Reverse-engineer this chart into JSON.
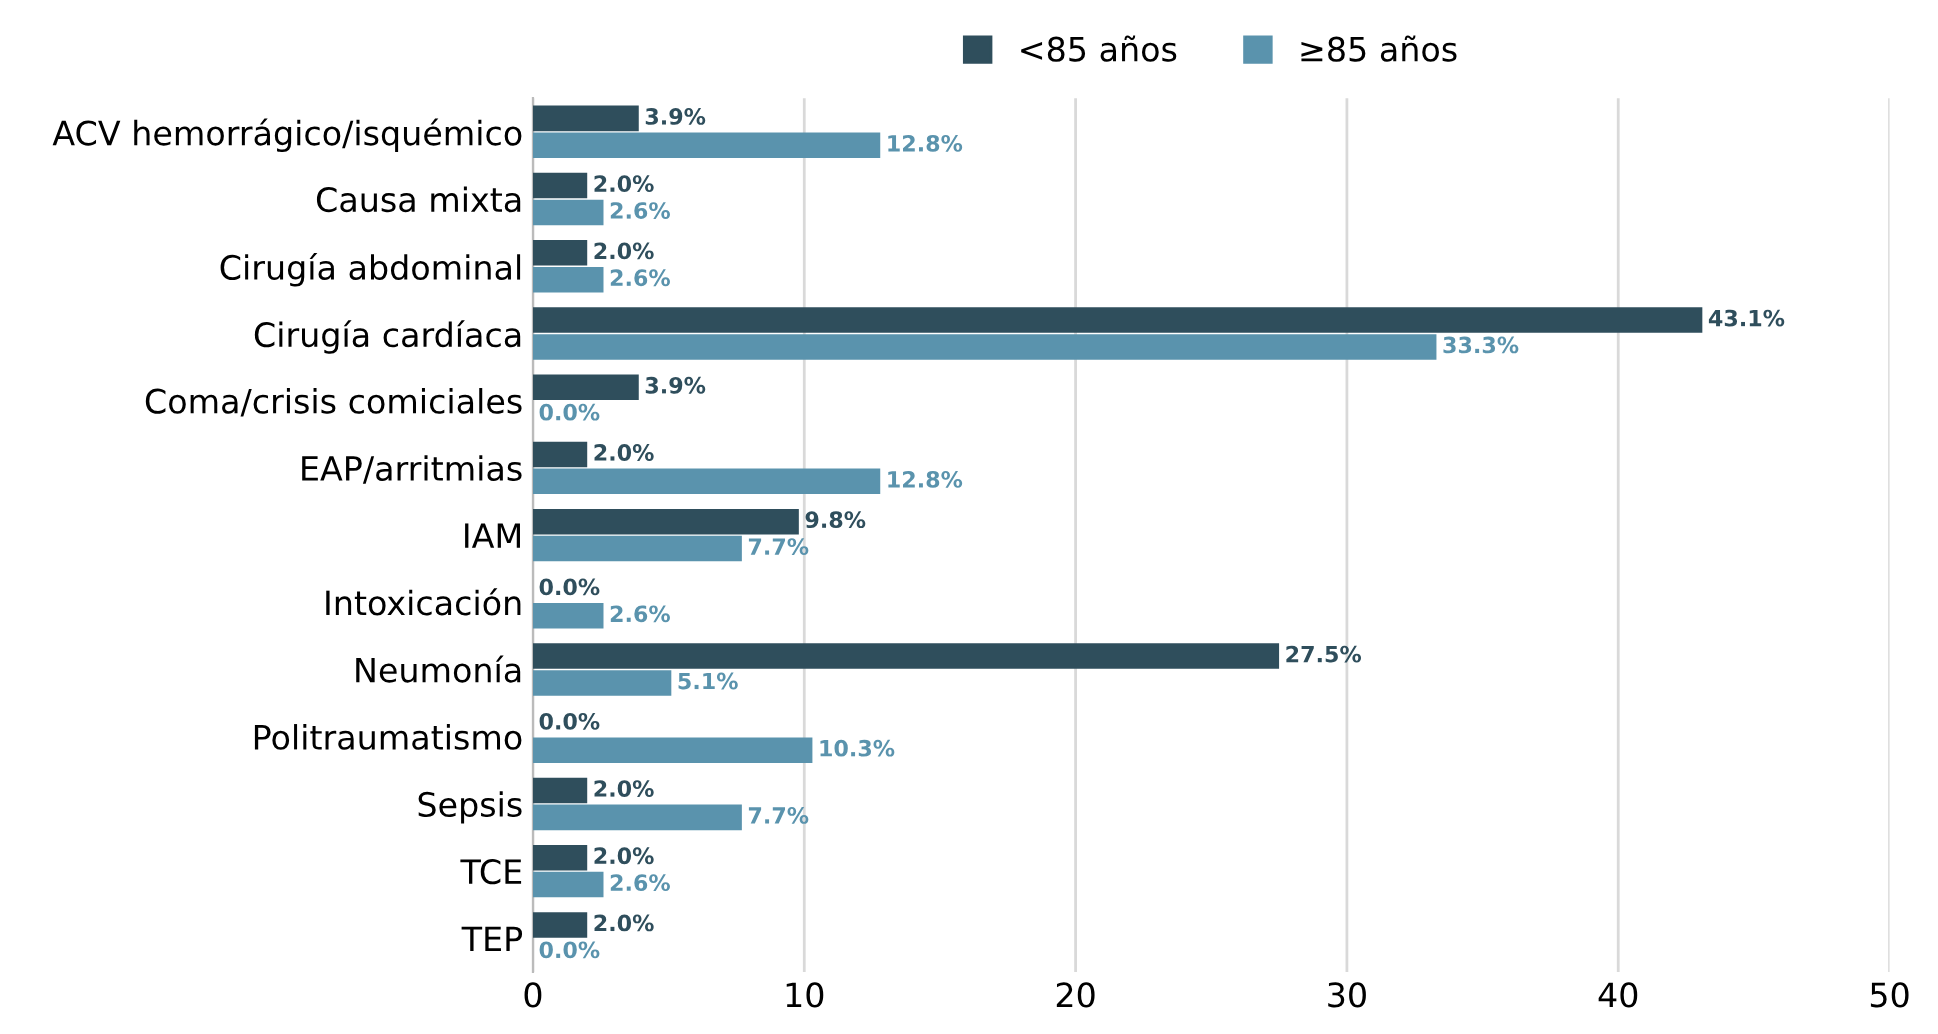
{
  "chart_data": {
    "type": "bar",
    "orientation": "horizontal",
    "categories": [
      "ACV hemorrágico/isquémico",
      "Causa mixta",
      "Cirugía abdominal",
      "Cirugía cardíaca",
      "Coma/crisis comiciales",
      "EAP/arritmias",
      "IAM",
      "Intoxicación",
      "Neumonía",
      "Politraumatismo",
      "Sepsis",
      "TCE",
      "TEP"
    ],
    "series": [
      {
        "name": "<85 años",
        "color": "#2f4e5c",
        "values": [
          3.9,
          2.0,
          2.0,
          43.1,
          3.9,
          2.0,
          9.8,
          0.0,
          27.5,
          0.0,
          2.0,
          2.0,
          2.0
        ],
        "value_labels": [
          "3.9%",
          "2.0%",
          "2.0%",
          "43.1%",
          "3.9%",
          "2.0%",
          "9.8%",
          "0.0%",
          "27.5%",
          "0.0%",
          "2.0%",
          "2.0%",
          "2.0%"
        ]
      },
      {
        "name": "≥85 años",
        "color": "#5a93ad",
        "values": [
          12.8,
          2.6,
          2.6,
          33.3,
          0.0,
          12.8,
          7.7,
          2.6,
          5.1,
          10.3,
          7.7,
          2.6,
          0.0
        ],
        "value_labels": [
          "12.8%",
          "2.6%",
          "2.6%",
          "33.3%",
          "0.0%",
          "12.8%",
          "7.7%",
          "2.6%",
          "5.1%",
          "10.3%",
          "7.7%",
          "2.6%",
          "0.0%"
        ]
      }
    ],
    "xlim": [
      0,
      50
    ],
    "xticks": [
      0,
      10,
      20,
      30,
      40,
      50
    ],
    "grid": "x",
    "legend": "top"
  }
}
